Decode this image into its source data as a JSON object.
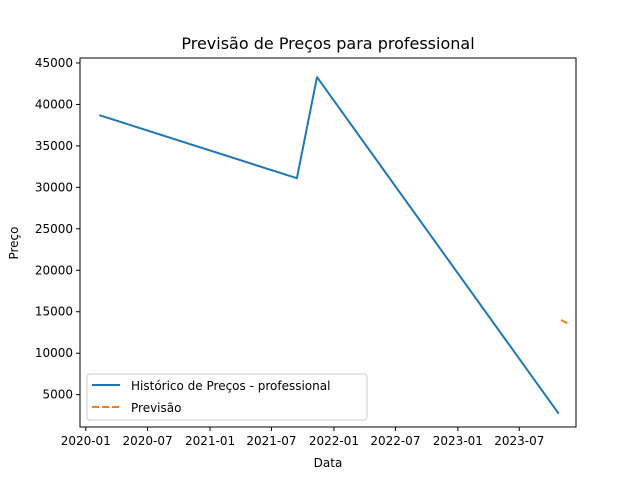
{
  "chart_data": {
    "type": "line",
    "title": "Previsão de Preços para professional",
    "xlabel": "Data",
    "ylabel": "Preço",
    "xlim": [
      "2019-12-15",
      "2023-12-15"
    ],
    "ylim": [
      1100,
      45600
    ],
    "x_ticks": [
      "2020-01",
      "2020-07",
      "2021-01",
      "2021-07",
      "2022-01",
      "2022-07",
      "2023-01",
      "2023-07"
    ],
    "y_ticks": [
      5000,
      10000,
      15000,
      20000,
      25000,
      30000,
      35000,
      40000,
      45000
    ],
    "series": [
      {
        "name": "Histórico de Preços - professional",
        "color": "#1f77b4",
        "style": "solid",
        "points": [
          {
            "x": "2020-02-10",
            "y": 38700
          },
          {
            "x": "2021-09-14",
            "y": 31100
          },
          {
            "x": "2021-11-12",
            "y": 43300
          },
          {
            "x": "2023-10-25",
            "y": 2700
          }
        ]
      },
      {
        "name": "Previsão",
        "color": "#ff7f0e",
        "style": "dashed",
        "points": [
          {
            "x": "2023-11-01",
            "y": 14000
          },
          {
            "x": "2023-11-20",
            "y": 13600
          }
        ]
      }
    ],
    "legend": "lower-left",
    "grid": false
  }
}
